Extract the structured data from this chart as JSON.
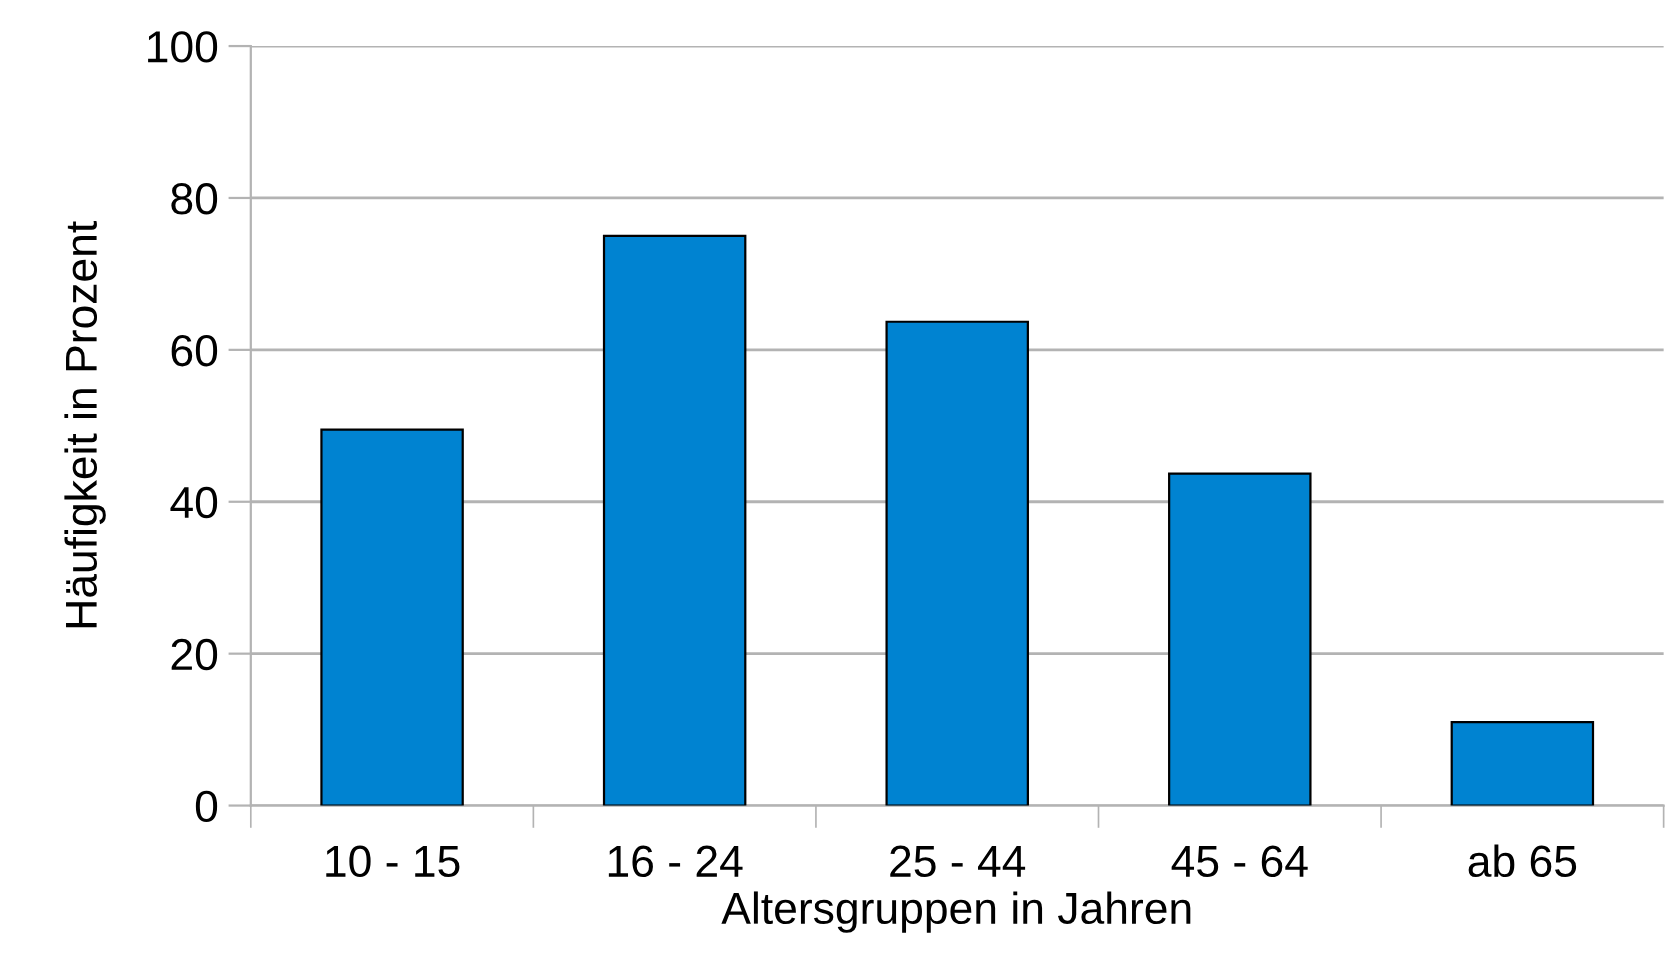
{
  "chart_data": {
    "type": "bar",
    "xlabel": "Altersgruppen in Jahren",
    "ylabel": "Häufigkeit in Prozent",
    "categories": [
      "10 - 15",
      "16 - 24",
      "25 - 44",
      "45 - 64",
      "ab 65"
    ],
    "values": [
      49.5,
      75,
      63.7,
      43.7,
      11
    ],
    "color": "#0083d1",
    "ylim": [
      0,
      100
    ],
    "yticks": [
      0,
      20,
      40,
      60,
      80,
      100
    ],
    "grid": "y",
    "legend": false
  }
}
